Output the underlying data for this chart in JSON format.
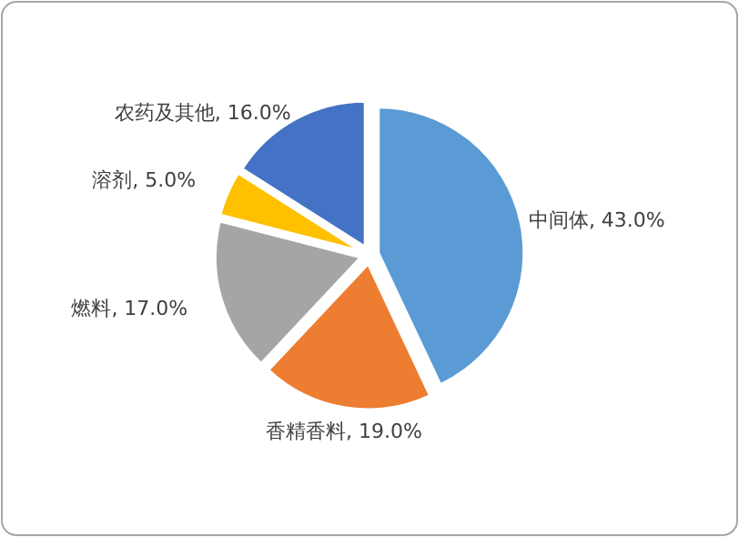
{
  "chart_data": {
    "type": "pie",
    "categories": [
      "中间体",
      "香精香料",
      "燃料",
      "溶剂",
      "农药及其他"
    ],
    "values": [
      43,
      19,
      17,
      5,
      16
    ],
    "colors": [
      "#5b9bd5",
      "#ed7d31",
      "#a5a5a5",
      "#ffc000",
      "#4472c4"
    ],
    "value_labels": [
      "43.0%",
      "19.0%",
      "17.0%",
      "5.0%",
      "16.0%"
    ],
    "legend": false
  }
}
